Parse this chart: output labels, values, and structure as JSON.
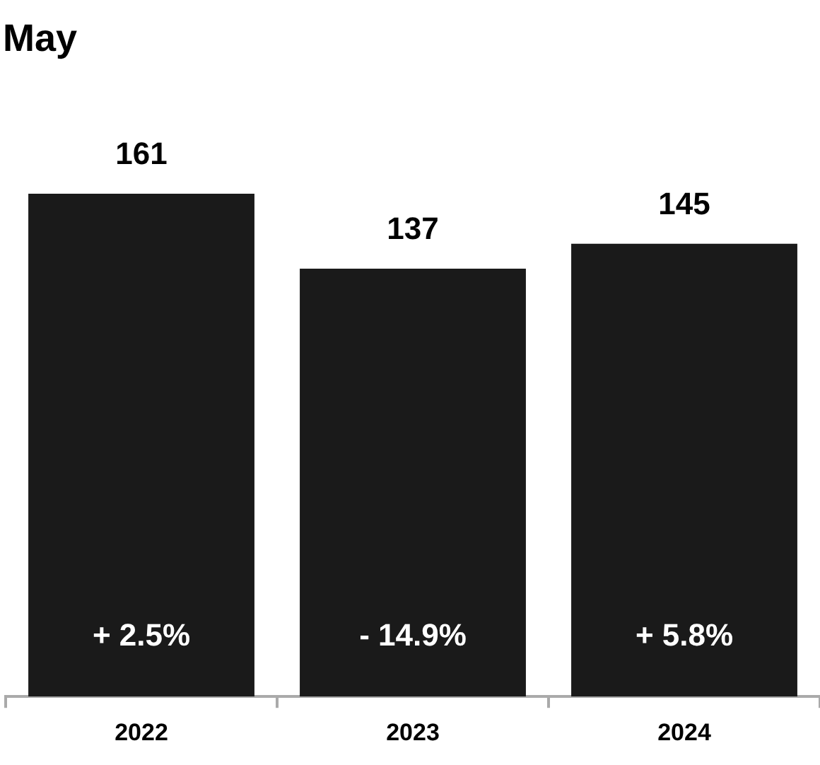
{
  "chart_data": {
    "type": "bar",
    "title": "May",
    "categories": [
      "2022",
      "2023",
      "2024"
    ],
    "values": [
      161,
      137,
      145
    ],
    "color": "#1a1a1a",
    "data_labels": true,
    "grid": false,
    "legend": false,
    "annotations": [
      "+ 2.5%",
      "- 14.9%",
      "+ 5.8%"
    ]
  }
}
